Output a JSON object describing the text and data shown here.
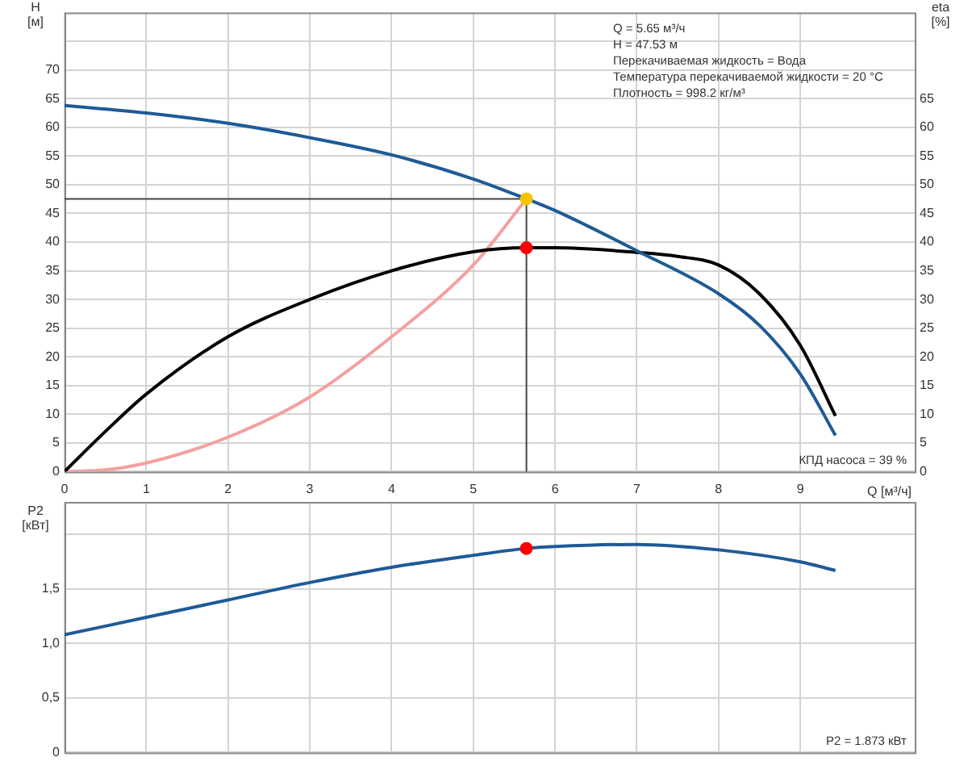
{
  "chart_data": [
    {
      "type": "line",
      "ylabel": "H [м]",
      "y2label": "eta [%]",
      "tick_labels": "y",
      "xlim": [
        0,
        10.4
      ],
      "xticks": [
        0,
        1,
        2,
        3,
        4,
        5,
        6,
        7,
        8,
        9
      ],
      "ylim": [
        0,
        80
      ],
      "yticks": [
        0,
        5,
        10,
        15,
        20,
        25,
        30,
        35,
        40,
        45,
        50,
        55,
        60,
        65,
        70,
        {
          "value": 75,
          "label": null
        }
      ],
      "y2lim": [
        0,
        80
      ],
      "y2ticks": [
        0,
        5,
        10,
        15,
        20,
        25,
        30,
        35,
        40,
        45,
        50,
        55,
        60,
        65
      ],
      "grid": true,
      "legend": false,
      "series": [
        {
          "color": "#1f5a96",
          "x": [
            0,
            1,
            2,
            3,
            4,
            5,
            5.65,
            6,
            7,
            8,
            8.5,
            9,
            9.43
          ],
          "values": [
            63.8,
            62.5,
            60.7,
            58.2,
            55.2,
            51,
            47.53,
            45.5,
            38.5,
            31,
            25.5,
            17,
            6.3
          ]
        },
        {
          "color": "#000000",
          "x": [
            0,
            0.5,
            1,
            2,
            3,
            4,
            5,
            5.65,
            6,
            7,
            7.5,
            8,
            8.5,
            9,
            9.43
          ],
          "values": [
            0,
            7,
            13.5,
            23.5,
            30,
            35,
            38.3,
            39,
            39,
            38.2,
            37.5,
            36,
            31,
            22,
            9.7
          ]
        },
        {
          "color": "#f4a0a0",
          "x": [
            0,
            0.5,
            1,
            2,
            3,
            4,
            5,
            5.65
          ],
          "values": [
            0,
            0.3,
            1.5,
            6,
            13,
            23.5,
            36,
            47.53
          ]
        },
        {
          "type": "scatter",
          "color": "#f5c400",
          "x": [
            5.65
          ],
          "values": [
            47.53
          ]
        },
        {
          "type": "scatter",
          "color": "#ff0000",
          "x": [
            5.65
          ],
          "values": [
            39
          ]
        }
      ],
      "ref_lines": [
        {
          "axis": "x",
          "value": 5.65,
          "color": "#444444"
        },
        {
          "axis": "y",
          "value": 47.53,
          "color": "#444444"
        }
      ],
      "annotations": [
        "Q = 5.65 м³/ч",
        "H = 47.53 м",
        "Перекачиваемая жидкость = Вода",
        "Температура перекачиваемой жидкости = 20 °C",
        "Плотность = 998.2 кг/м³",
        "КПД насоса = 39 %"
      ]
    },
    {
      "type": "line",
      "ylabel": "P2 [кВт]",
      "xlabel": "Q [м³/ч]",
      "xlim": [
        0,
        10.4
      ],
      "xticks": [
        0,
        1,
        2,
        3,
        4,
        5,
        6,
        7,
        8,
        9
      ],
      "ylim": [
        0,
        2.3
      ],
      "yticks": [
        0,
        {
          "value": 0.5,
          "label": "0,5"
        },
        {
          "value": 1,
          "label": "1,0"
        },
        {
          "value": 1.5,
          "label": "1,5"
        },
        {
          "value": 2,
          "label": null
        }
      ],
      "grid": true,
      "legend": false,
      "series": [
        {
          "color": "#1f5a96",
          "x": [
            0,
            1,
            2,
            3,
            4,
            5,
            5.65,
            6,
            7,
            8,
            9,
            9.43
          ],
          "values": [
            1.08,
            1.24,
            1.4,
            1.56,
            1.7,
            1.81,
            1.873,
            1.89,
            1.91,
            1.86,
            1.75,
            1.67
          ]
        },
        {
          "type": "scatter",
          "color": "#ff0000",
          "x": [
            5.65
          ],
          "values": [
            1.873
          ]
        }
      ],
      "annotations": [
        "P2 = 1.873 кВт"
      ]
    }
  ]
}
